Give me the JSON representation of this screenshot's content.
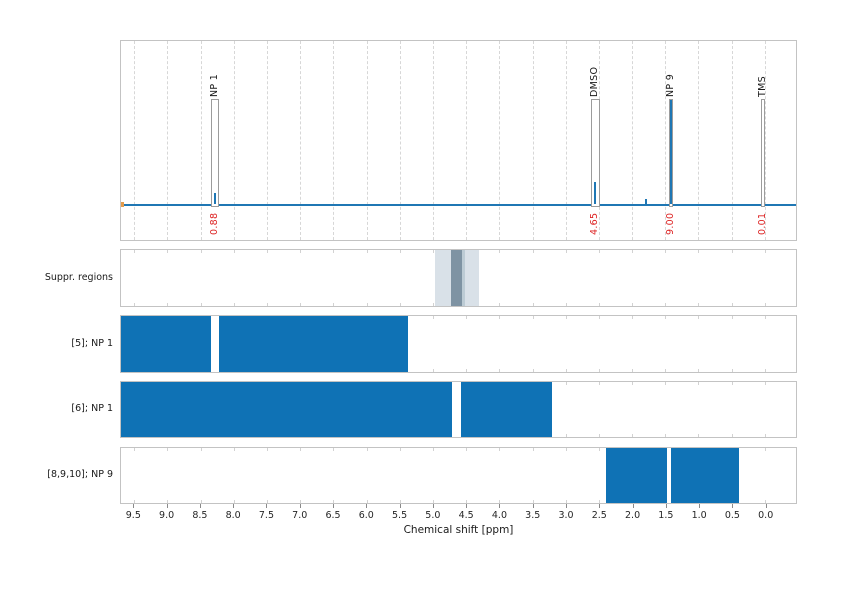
{
  "chart_data": {
    "type": "line",
    "title": "",
    "xlabel": "Chemical shift [ppm]",
    "x_axis_reversed": true,
    "xlim": [
      9.7,
      -0.47
    ],
    "xticks": [
      "9.5",
      "9.0",
      "8.5",
      "8.0",
      "7.5",
      "7.0",
      "6.5",
      "6.0",
      "5.5",
      "5.0",
      "4.5",
      "4.0",
      "3.5",
      "3.0",
      "2.5",
      "2.0",
      "1.5",
      "1.0",
      "0.5",
      "0.0"
    ],
    "grid": "vertical-dashed",
    "line_color": "#1f77b4",
    "bar_color": "#0f72b5",
    "integral_label_color": "#dd2222",
    "baseline_marker_color": "#e39c4e",
    "spectrum_peaks": [
      {
        "label": "NP 1",
        "ppm": 8.28,
        "integral": "0.88",
        "region": [
          8.34,
          8.23
        ],
        "rel_height": 0.067
      },
      {
        "label": "DMSO",
        "ppm": 2.56,
        "integral": "4.65",
        "region": [
          2.62,
          2.49
        ],
        "rel_height": 0.135
      },
      {
        "label": "NP 9",
        "ppm": 1.41,
        "integral": "9.00",
        "region": [
          1.44,
          1.38
        ],
        "rel_height": 0.638
      },
      {
        "label": "TMS",
        "ppm": 0.02,
        "integral": "0.01",
        "region": [
          0.05,
          0.0
        ],
        "rel_height": 0.0
      }
    ],
    "minor_peaks": [
      {
        "ppm": 1.79,
        "rel_height": 0.03
      }
    ],
    "rows": [
      {
        "label": "Suppr. regions",
        "kind": "regions",
        "regions": [
          {
            "from": 4.97,
            "to": 4.31,
            "color": "#d9e1e8"
          },
          {
            "from": 4.73,
            "to": 4.56,
            "color": "#7e93a3"
          },
          {
            "from": 4.56,
            "to": 4.51,
            "color": "#bccbd4"
          }
        ]
      },
      {
        "label": "[5]; NP 1",
        "kind": "bars",
        "segments": [
          [
            9.7,
            8.34
          ],
          [
            8.22,
            5.37
          ]
        ]
      },
      {
        "label": "[6]; NP 1",
        "kind": "bars",
        "segments": [
          [
            9.7,
            4.72
          ],
          [
            4.57,
            3.21
          ]
        ]
      },
      {
        "label": "[8,9,10]; NP 9",
        "kind": "bars",
        "segments": [
          [
            2.39,
            1.47
          ],
          [
            1.41,
            0.39
          ]
        ]
      }
    ]
  }
}
